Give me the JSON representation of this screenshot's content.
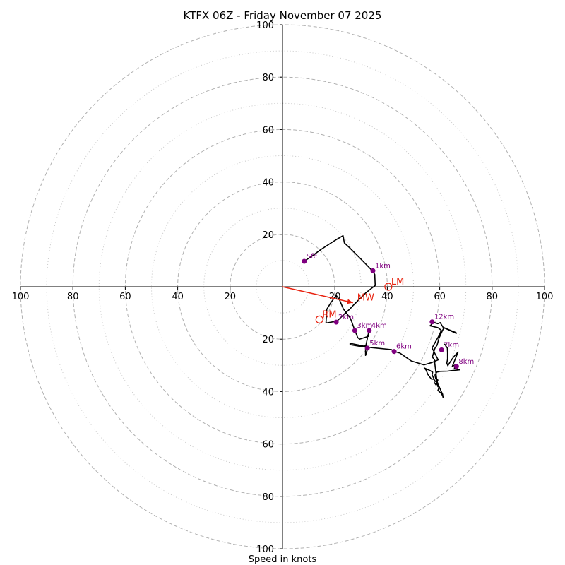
{
  "chart_data": {
    "type": "hodograph",
    "title": "KTFX 06Z - Friday November 07 2025",
    "xlabel": "Speed in knots",
    "units": "knots",
    "axis_range": [
      -100,
      100
    ],
    "ring_major": [
      20,
      40,
      60,
      80,
      100
    ],
    "ring_minor": [
      10,
      30,
      50,
      70,
      90
    ],
    "x_ticks": [
      -100,
      -80,
      -60,
      -40,
      -20,
      20,
      40,
      60,
      80,
      100
    ],
    "y_ticks": [
      -100,
      -80,
      -60,
      -40,
      -20,
      20,
      40,
      60,
      80,
      100
    ],
    "x_tick_labels": [
      "100",
      "80",
      "60",
      "40",
      "20",
      "20",
      "40",
      "60",
      "80",
      "100"
    ],
    "y_tick_labels": [
      "100",
      "80",
      "60",
      "40",
      "20",
      "20",
      "40",
      "60",
      "80",
      "100"
    ],
    "trace": [
      [
        8.2,
        9.7
      ],
      [
        10.7,
        11.3
      ],
      [
        14.5,
        14.1
      ],
      [
        20.2,
        17.8
      ],
      [
        23.1,
        19.5
      ],
      [
        23.6,
        16.7
      ],
      [
        25.4,
        15.1
      ],
      [
        29.2,
        11.3
      ],
      [
        34.3,
        6.1
      ],
      [
        35.2,
        4.7
      ],
      [
        35.4,
        0.5
      ],
      [
        31.7,
        -2.4
      ],
      [
        30.3,
        -3.8
      ],
      [
        28.7,
        -5.4
      ],
      [
        27.1,
        -7.0
      ],
      [
        25.6,
        -8.6
      ],
      [
        23.9,
        -10.1
      ],
      [
        22.3,
        -11.7
      ],
      [
        20.8,
        -13.1
      ],
      [
        17.1,
        -13.8
      ],
      [
        16.6,
        -13.8
      ],
      [
        16.9,
        -8.6
      ],
      [
        18.5,
        -6.0
      ],
      [
        20.5,
        -3.3
      ],
      [
        21.8,
        -5.1
      ],
      [
        23.2,
        -8.4
      ],
      [
        24.4,
        -10.1
      ],
      [
        25.9,
        -12.0
      ],
      [
        27.6,
        -16.6
      ],
      [
        28.7,
        -19.4
      ],
      [
        29.4,
        -20.0
      ],
      [
        32.8,
        -18.9
      ],
      [
        33.1,
        -16.6
      ],
      [
        32.4,
        -19.4
      ],
      [
        32.4,
        -19.7
      ],
      [
        31.9,
        -22.1
      ],
      [
        32.6,
        -23.4
      ],
      [
        31.7,
        -26.2
      ],
      [
        31.7,
        -22.5
      ],
      [
        30.4,
        -22.9
      ],
      [
        25.8,
        -22.1
      ],
      [
        25.8,
        -21.6
      ],
      [
        28.4,
        -22.1
      ],
      [
        33.7,
        -23.2
      ],
      [
        41.6,
        -24.0
      ],
      [
        42.6,
        -24.7
      ],
      [
        44.8,
        -25.3
      ],
      [
        49.1,
        -28.3
      ],
      [
        54.0,
        -29.8
      ],
      [
        57.1,
        -28.9
      ],
      [
        59.4,
        -27.9
      ],
      [
        57.1,
        -23.4
      ],
      [
        58.0,
        -21.7
      ],
      [
        59.3,
        -19.4
      ],
      [
        60.0,
        -18.1
      ],
      [
        60.6,
        -16.6
      ],
      [
        59.3,
        -15.6
      ],
      [
        56.3,
        -14.9
      ],
      [
        56.8,
        -14.5
      ],
      [
        57.1,
        -13.4
      ],
      [
        59.3,
        -14.1
      ],
      [
        60.2,
        -13.7
      ],
      [
        61.3,
        -15.5
      ],
      [
        66.3,
        -17.8
      ],
      [
        66.3,
        -17.6
      ],
      [
        66.0,
        -17.4
      ],
      [
        61.6,
        -15.6
      ],
      [
        60.4,
        -18.1
      ],
      [
        59.7,
        -19.7
      ],
      [
        59.0,
        -22.3
      ],
      [
        58.1,
        -23.6
      ],
      [
        57.2,
        -26.8
      ],
      [
        58.1,
        -28.1
      ],
      [
        58.1,
        -29.2
      ],
      [
        58.9,
        -35.6
      ],
      [
        59.7,
        -38.6
      ],
      [
        59.3,
        -39.6
      ],
      [
        60.4,
        -40.5
      ],
      [
        61.1,
        -41.5
      ],
      [
        61.3,
        -42.3
      ],
      [
        61.1,
        -41.0
      ],
      [
        60.5,
        -39.8
      ],
      [
        59.8,
        -38.2
      ],
      [
        59.0,
        -36.8
      ],
      [
        57.7,
        -35.3
      ],
      [
        56.8,
        -35.2
      ],
      [
        55.5,
        -33.5
      ],
      [
        54.8,
        -31.8
      ],
      [
        54.1,
        -31.0
      ],
      [
        56.3,
        -32.0
      ],
      [
        57.3,
        -32.6
      ],
      [
        57.1,
        -33.6
      ],
      [
        57.9,
        -35.4
      ],
      [
        57.9,
        -36.5
      ],
      [
        58.6,
        -37.5
      ],
      [
        59.0,
        -36.7
      ],
      [
        59.3,
        -37.7
      ],
      [
        59.3,
        -38.1
      ],
      [
        58.9,
        -36.3
      ],
      [
        59.3,
        -35.6
      ],
      [
        58.5,
        -35.2
      ],
      [
        58.4,
        -34.8
      ],
      [
        58.2,
        -33.7
      ],
      [
        58.9,
        -32.6
      ],
      [
        60.1,
        -32.3
      ],
      [
        63.0,
        -32.2
      ],
      [
        67.7,
        -31.7
      ],
      [
        65.6,
        -31.1
      ],
      [
        66.1,
        -29.7
      ],
      [
        64.8,
        -30.4
      ],
      [
        67.0,
        -24.9
      ],
      [
        65.3,
        -26.8
      ],
      [
        63.8,
        -29.0
      ],
      [
        63.1,
        -30.1
      ],
      [
        62.7,
        -29.1
      ],
      [
        63.0,
        -27.7
      ],
      [
        63.0,
        -25.1
      ],
      [
        62.9,
        -23.4
      ],
      [
        62.1,
        -22.2
      ],
      [
        61.8,
        -21.8
      ]
    ],
    "height_points": [
      {
        "label": "Sfc",
        "u": 8.3,
        "v": 9.7
      },
      {
        "label": "1km",
        "u": 34.5,
        "v": 6.1
      },
      {
        "label": "2km",
        "u": 20.5,
        "v": -13.5
      },
      {
        "label": "3km",
        "u": 27.6,
        "v": -16.7
      },
      {
        "label": "4km",
        "u": 33.1,
        "v": -16.7
      },
      {
        "label": "5km",
        "u": 32.4,
        "v": -23.4
      },
      {
        "label": "6km",
        "u": 42.6,
        "v": -24.7
      },
      {
        "label": "7km",
        "u": 60.7,
        "v": -24.1
      },
      {
        "label": "8km",
        "u": 66.4,
        "v": -30.4
      },
      {
        "label": "12km",
        "u": 57.1,
        "v": -13.4
      }
    ],
    "storm_motion": [
      {
        "label": "LM",
        "u": 40.4,
        "v": 0.0
      },
      {
        "label": "RM",
        "u": 14.1,
        "v": -12.5
      }
    ],
    "mean_wind": {
      "label": "MW",
      "u": 26.9,
      "v": -6.1
    },
    "colors": {
      "trace": "#000000",
      "height_points": "#800080",
      "storm_motion": "#e8220f",
      "grid": "#b0b0b0"
    }
  }
}
